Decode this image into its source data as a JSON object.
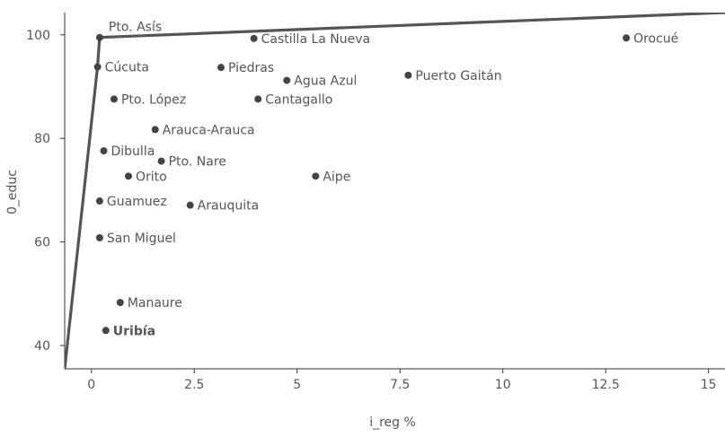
{
  "chart_data": {
    "type": "scatter",
    "xlabel": "i_reg %",
    "ylabel": "0_educ",
    "xlim": [
      -0.65,
      15.4
    ],
    "ylim": [
      35.5,
      104.3
    ],
    "x_ticks": [
      0,
      2.5,
      5,
      7.5,
      10,
      12.5,
      15
    ],
    "x_tick_labels": [
      "0",
      "2.5",
      "5",
      "7.5",
      "10",
      "12.5",
      "15"
    ],
    "y_ticks": [
      40,
      60,
      80,
      100
    ],
    "y_tick_labels": [
      "40",
      "60",
      "80",
      "100"
    ],
    "grid": false,
    "colors": {
      "point": "#444444",
      "line": "#555555",
      "axis": "#333333",
      "text": "#555555"
    },
    "points": [
      {
        "label": "Pto. Asís",
        "x": 0.2,
        "y": 99.5,
        "label_pos": "above-right"
      },
      {
        "label": "Castilla La Nueva",
        "x": 3.95,
        "y": 99.3,
        "label_pos": "right"
      },
      {
        "label": "Orocué",
        "x": 13.0,
        "y": 99.4,
        "label_pos": "right"
      },
      {
        "label": "Cúcuta",
        "x": 0.15,
        "y": 93.8,
        "label_pos": "right"
      },
      {
        "label": "Piedras",
        "x": 3.15,
        "y": 93.7,
        "label_pos": "right"
      },
      {
        "label": "Agua Azul",
        "x": 4.75,
        "y": 91.2,
        "label_pos": "right"
      },
      {
        "label": "Puerto Gaitán",
        "x": 7.7,
        "y": 92.2,
        "label_pos": "right"
      },
      {
        "label": "Pto. López",
        "x": 0.55,
        "y": 87.6,
        "label_pos": "right"
      },
      {
        "label": "Cantagallo",
        "x": 4.05,
        "y": 87.6,
        "label_pos": "right"
      },
      {
        "label": "Arauca-Arauca",
        "x": 1.55,
        "y": 81.7,
        "label_pos": "right"
      },
      {
        "label": "Dibulla",
        "x": 0.3,
        "y": 77.6,
        "label_pos": "right"
      },
      {
        "label": "Pto. Nare",
        "x": 1.7,
        "y": 75.6,
        "label_pos": "right"
      },
      {
        "label": "Orito",
        "x": 0.9,
        "y": 72.7,
        "label_pos": "right"
      },
      {
        "label": "Aipe",
        "x": 5.45,
        "y": 72.7,
        "label_pos": "right"
      },
      {
        "label": "Guamuez",
        "x": 0.2,
        "y": 67.9,
        "label_pos": "right"
      },
      {
        "label": "Arauquita",
        "x": 2.4,
        "y": 67.1,
        "label_pos": "right"
      },
      {
        "label": "San Miguel",
        "x": 0.2,
        "y": 60.8,
        "label_pos": "right"
      },
      {
        "label": "Manaure",
        "x": 0.7,
        "y": 48.3,
        "label_pos": "right"
      },
      {
        "label": "Uribía",
        "x": 0.35,
        "y": 42.9,
        "label_pos": "right",
        "bold": true
      }
    ],
    "frontier": [
      {
        "x": -0.65,
        "y": 35.5
      },
      {
        "x": 0.15,
        "y": 93.9
      },
      {
        "x": 0.2,
        "y": 99.5
      },
      {
        "x": 15.4,
        "y": 104.3
      }
    ]
  }
}
